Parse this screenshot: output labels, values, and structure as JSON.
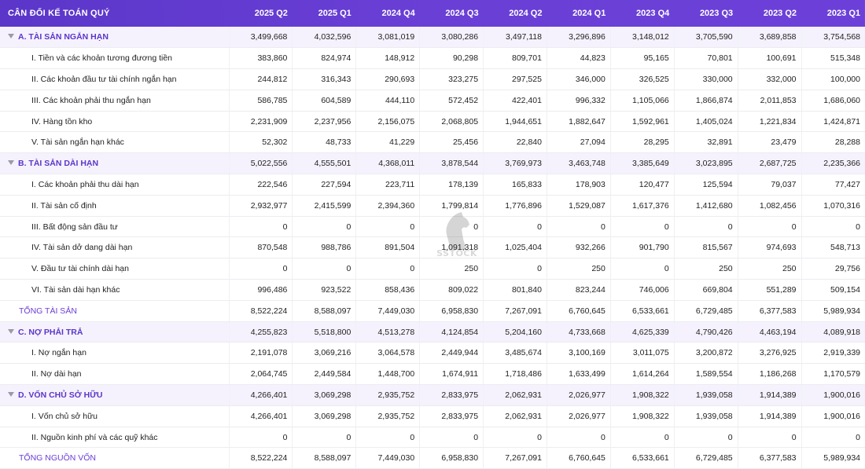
{
  "header": {
    "title": "CÂN ĐỐI KẾ TOÁN QUÝ",
    "periods": [
      "2025 Q2",
      "2025 Q1",
      "2024 Q4",
      "2024 Q3",
      "2024 Q2",
      "2024 Q1",
      "2023 Q4",
      "2023 Q3",
      "2023 Q2",
      "2023 Q1"
    ]
  },
  "rows": [
    {
      "type": "section",
      "label": "A. TÀI SẢN NGẮN HẠN",
      "values": [
        "3,499,668",
        "4,032,596",
        "3,081,019",
        "3,080,286",
        "3,497,118",
        "3,296,896",
        "3,148,012",
        "3,705,590",
        "3,689,858",
        "3,754,568"
      ]
    },
    {
      "type": "item",
      "label": "I. Tiền và các khoản tương đương tiền",
      "values": [
        "383,860",
        "824,974",
        "148,912",
        "90,298",
        "809,701",
        "44,823",
        "95,165",
        "70,801",
        "100,691",
        "515,348"
      ]
    },
    {
      "type": "item",
      "label": "II. Các khoản đầu tư tài chính ngắn hạn",
      "values": [
        "244,812",
        "316,343",
        "290,693",
        "323,275",
        "297,525",
        "346,000",
        "326,525",
        "330,000",
        "332,000",
        "100,000"
      ]
    },
    {
      "type": "item",
      "label": "III. Các khoản phải thu ngắn hạn",
      "values": [
        "586,785",
        "604,589",
        "444,110",
        "572,452",
        "422,401",
        "996,332",
        "1,105,066",
        "1,866,874",
        "2,011,853",
        "1,686,060"
      ]
    },
    {
      "type": "item",
      "label": "IV. Hàng tồn kho",
      "values": [
        "2,231,909",
        "2,237,956",
        "2,156,075",
        "2,068,805",
        "1,944,651",
        "1,882,647",
        "1,592,961",
        "1,405,024",
        "1,221,834",
        "1,424,871"
      ]
    },
    {
      "type": "item",
      "label": "V. Tài sản ngắn hạn khác",
      "values": [
        "52,302",
        "48,733",
        "41,229",
        "25,456",
        "22,840",
        "27,094",
        "28,295",
        "32,891",
        "23,479",
        "28,288"
      ]
    },
    {
      "type": "section",
      "label": "B. TÀI SẢN DÀI HẠN",
      "values": [
        "5,022,556",
        "4,555,501",
        "4,368,011",
        "3,878,544",
        "3,769,973",
        "3,463,748",
        "3,385,649",
        "3,023,895",
        "2,687,725",
        "2,235,366"
      ]
    },
    {
      "type": "item",
      "label": "I. Các khoản phải thu dài hạn",
      "values": [
        "222,546",
        "227,594",
        "223,711",
        "178,139",
        "165,833",
        "178,903",
        "120,477",
        "125,594",
        "79,037",
        "77,427"
      ]
    },
    {
      "type": "item",
      "label": "II. Tài sản cố định",
      "values": [
        "2,932,977",
        "2,415,599",
        "2,394,360",
        "1,799,814",
        "1,776,896",
        "1,529,087",
        "1,617,376",
        "1,412,680",
        "1,082,456",
        "1,070,316"
      ]
    },
    {
      "type": "item",
      "label": "III. Bất động sản đầu tư",
      "values": [
        "0",
        "0",
        "0",
        "0",
        "0",
        "0",
        "0",
        "0",
        "0",
        "0"
      ]
    },
    {
      "type": "item",
      "label": "IV. Tài sản dở dang dài hạn",
      "values": [
        "870,548",
        "988,786",
        "891,504",
        "1,091,318",
        "1,025,404",
        "932,266",
        "901,790",
        "815,567",
        "974,693",
        "548,713"
      ]
    },
    {
      "type": "item",
      "label": "V. Đầu tư tài chính dài hạn",
      "values": [
        "0",
        "0",
        "0",
        "250",
        "0",
        "250",
        "0",
        "250",
        "250",
        "29,756"
      ]
    },
    {
      "type": "item",
      "label": "VI. Tài sản dài hạn khác",
      "values": [
        "996,486",
        "923,522",
        "858,436",
        "809,022",
        "801,840",
        "823,244",
        "746,006",
        "669,804",
        "551,289",
        "509,154"
      ]
    },
    {
      "type": "total",
      "label": "TỔNG TÀI SẢN",
      "values": [
        "8,522,224",
        "8,588,097",
        "7,449,030",
        "6,958,830",
        "7,267,091",
        "6,760,645",
        "6,533,661",
        "6,729,485",
        "6,377,583",
        "5,989,934"
      ]
    },
    {
      "type": "section",
      "label": "C. NỢ PHẢI TRẢ",
      "values": [
        "4,255,823",
        "5,518,800",
        "4,513,278",
        "4,124,854",
        "5,204,160",
        "4,733,668",
        "4,625,339",
        "4,790,426",
        "4,463,194",
        "4,089,918"
      ]
    },
    {
      "type": "item",
      "label": "I. Nợ ngắn hạn",
      "values": [
        "2,191,078",
        "3,069,216",
        "3,064,578",
        "2,449,944",
        "3,485,674",
        "3,100,169",
        "3,011,075",
        "3,200,872",
        "3,276,925",
        "2,919,339"
      ]
    },
    {
      "type": "item",
      "label": "II. Nợ dài hạn",
      "values": [
        "2,064,745",
        "2,449,584",
        "1,448,700",
        "1,674,911",
        "1,718,486",
        "1,633,499",
        "1,614,264",
        "1,589,554",
        "1,186,268",
        "1,170,579"
      ]
    },
    {
      "type": "section",
      "label": "D. VỐN CHỦ SỞ HỮU",
      "values": [
        "4,266,401",
        "3,069,298",
        "2,935,752",
        "2,833,975",
        "2,062,931",
        "2,026,977",
        "1,908,322",
        "1,939,058",
        "1,914,389",
        "1,900,016"
      ]
    },
    {
      "type": "item",
      "label": "I. Vốn chủ sở hữu",
      "values": [
        "4,266,401",
        "3,069,298",
        "2,935,752",
        "2,833,975",
        "2,062,931",
        "2,026,977",
        "1,908,322",
        "1,939,058",
        "1,914,389",
        "1,900,016"
      ]
    },
    {
      "type": "item",
      "label": "II. Nguồn kinh phí và các quỹ khác",
      "values": [
        "0",
        "0",
        "0",
        "0",
        "0",
        "0",
        "0",
        "0",
        "0",
        "0"
      ]
    },
    {
      "type": "total",
      "label": "TỔNG NGUỒN VỐN",
      "values": [
        "8,522,224",
        "8,588,097",
        "7,449,030",
        "6,958,830",
        "7,267,091",
        "6,760,645",
        "6,533,661",
        "6,729,485",
        "6,377,583",
        "5,989,934"
      ]
    }
  ],
  "watermark": {
    "text": "SSTOCK",
    "icon": "horse-head-logo"
  },
  "colors": {
    "header_bg": "#5b36c9",
    "accent": "#6a3fd6",
    "section_bg": "#f5f2fd"
  }
}
